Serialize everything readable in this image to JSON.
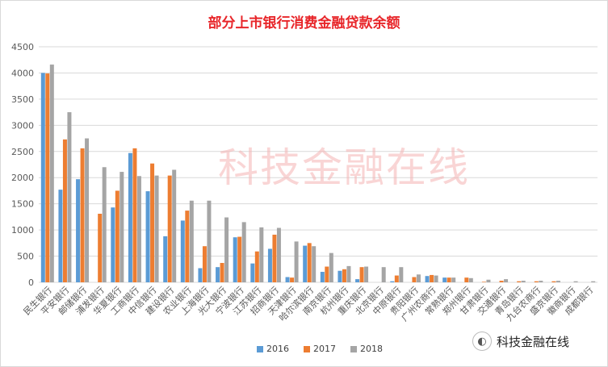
{
  "chart_data": {
    "type": "bar",
    "title": "部分上市银行消费金融贷款余额",
    "xlabel": "",
    "ylabel": "",
    "ylim": [
      0,
      4500
    ],
    "yticks": [
      0,
      500,
      1000,
      1500,
      2000,
      2500,
      3000,
      3500,
      4000,
      4500
    ],
    "grid": true,
    "legend_position": "bottom",
    "categories": [
      "民生银行",
      "平安银行",
      "邮储银行",
      "浦发银行",
      "华夏银行",
      "工商银行",
      "中信银行",
      "建设银行",
      "农业银行",
      "上海银行",
      "光大银行",
      "宁波银行",
      "江苏银行",
      "招商银行",
      "天津银行",
      "哈尔滨银行",
      "南京银行",
      "杭州银行",
      "重庆银行",
      "北京银行",
      "中原银行",
      "贵阳银行",
      "广州农商行",
      "常熟银行",
      "郑州银行",
      "甘肃银行",
      "交通银行",
      "青岛银行",
      "九台农商行",
      "盛京银行",
      "徽商银行",
      "成都银行"
    ],
    "series": [
      {
        "name": "2016",
        "color": "#5b9bd5",
        "values": [
          4000,
          1770,
          1970,
          0,
          1430,
          2470,
          1740,
          880,
          1180,
          270,
          290,
          860,
          360,
          640,
          100,
          700,
          200,
          220,
          60,
          0,
          20,
          0,
          120,
          90,
          0,
          0,
          0,
          0,
          0,
          0,
          0,
          0
        ]
      },
      {
        "name": "2017",
        "color": "#ed7d31",
        "values": [
          3990,
          2730,
          2560,
          1310,
          1750,
          2560,
          2270,
          2040,
          1370,
          690,
          370,
          870,
          590,
          910,
          90,
          750,
          300,
          250,
          290,
          0,
          130,
          100,
          140,
          90,
          90,
          10,
          30,
          20,
          20,
          20,
          0,
          0
        ]
      },
      {
        "name": "2018",
        "color": "#a5a5a5",
        "values": [
          4160,
          3250,
          2750,
          2200,
          2110,
          2030,
          2040,
          2150,
          1560,
          1560,
          1240,
          1150,
          1050,
          1040,
          780,
          690,
          560,
          310,
          300,
          290,
          290,
          150,
          130,
          90,
          80,
          50,
          60,
          30,
          30,
          30,
          20,
          20
        ]
      }
    ]
  },
  "watermark": "科技金融在线",
  "brand": {
    "icon": "wechat-icon",
    "text": "科技金融在线"
  }
}
